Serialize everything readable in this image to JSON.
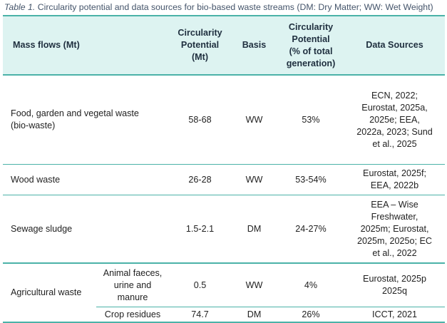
{
  "caption": {
    "label": "Table 1.",
    "text": " Circularity potential and data sources for bio-based waste streams (DM: Dry Matter; WW: Wet Weight)"
  },
  "headers": {
    "mass_flows": "Mass flows (Mt)",
    "circ_potential": [
      "Circularity",
      "Potential",
      "(Mt)"
    ],
    "basis": "Basis",
    "circ_pct": [
      "Circularity",
      "Potential",
      "(% of total",
      "generation)"
    ],
    "sources": "Data Sources"
  },
  "rows": {
    "bio": {
      "flow": [
        "Food, garden and vegetal waste",
        "(bio-waste)"
      ],
      "potential": "58-68",
      "basis": "WW",
      "pct": "53%",
      "sources": [
        "ECN, 2022;",
        "Eurostat, 2025a,",
        "2025e; EEA,",
        "2022a, 2023; Sund",
        "et al., 2025"
      ]
    },
    "wood": {
      "flow": "Wood waste",
      "potential": "26-28",
      "basis": "WW",
      "pct": "53-54%",
      "sources": [
        "Eurostat, 2025f;",
        "EEA, 2022b"
      ]
    },
    "sludge": {
      "flow": "Sewage sludge",
      "potential": "1.5-2.1",
      "basis": "DM",
      "pct": "24-27%",
      "sources": [
        "EEA – Wise",
        "Freshwater,",
        "2025m; Eurostat,",
        "2025m, 2025o; EC",
        "et al., 2022"
      ]
    },
    "agri": {
      "flow": "Agricultural waste",
      "sub1": {
        "name": [
          "Animal faeces,",
          "urine and",
          "manure"
        ],
        "potential": "0.5",
        "basis": "WW",
        "pct": "4%",
        "sources": [
          "Eurostat, 2025p",
          "2025q"
        ]
      },
      "sub2": {
        "name": "Crop residues",
        "potential": "74.7",
        "basis": "DM",
        "pct": "26%",
        "sources": "ICCT, 2021"
      }
    }
  },
  "colors": {
    "header_bg": "#ddf3f1",
    "rule": "#4bb2a8",
    "caption": "#44546a"
  }
}
